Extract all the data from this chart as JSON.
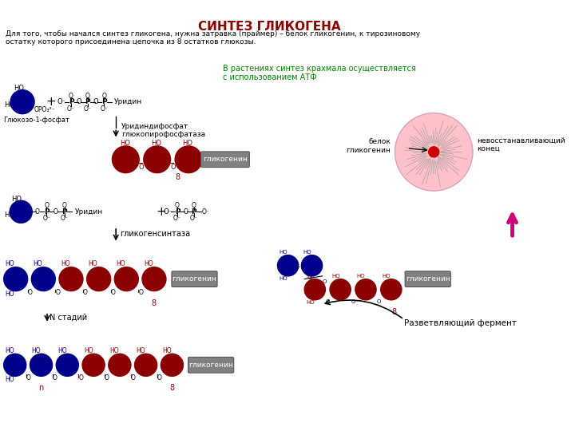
{
  "title": "СИНТЕЗ ГЛИКОГЕНА",
  "title_color": "#8B0000",
  "title_fontsize": 11,
  "bg_color": "#ffffff",
  "subtitle": "Для того, чтобы начался синтез гликогена, нужна затравка (праймер) – белок гликогенин, к тирозиновому\nостатку которого присоединена цепочка из 8 остатков глюкозы.",
  "note_green": "В растениях синтез крахмала осуществляется\nс использованием АТФ",
  "label_glucose1p": "Глюкозо-1-фосфат",
  "label_uridine": "Уридин",
  "label_udp_glucose": "Уридиндифосфат\nглюкопирофосфатаза",
  "label_glycogenin_box": "гликогенин",
  "label_protein": "белок\nгликогенин",
  "label_nonreducing": "невосстанавливающий\nконец",
  "label_glycogensynthase": "гликогенсинтаза",
  "label_N_stages": "N стадий",
  "label_branching": "Разветвляющий фермент",
  "dark_blue": "#00008B",
  "dark_red": "#8B0000",
  "pink_circle": "#FFB6C1",
  "gray_box_edge": "#555555",
  "gray_box_face": "#808080",
  "magenta": "#CC0077",
  "green_text": "#008000",
  "black": "#000000",
  "red_small": "#cc0000"
}
